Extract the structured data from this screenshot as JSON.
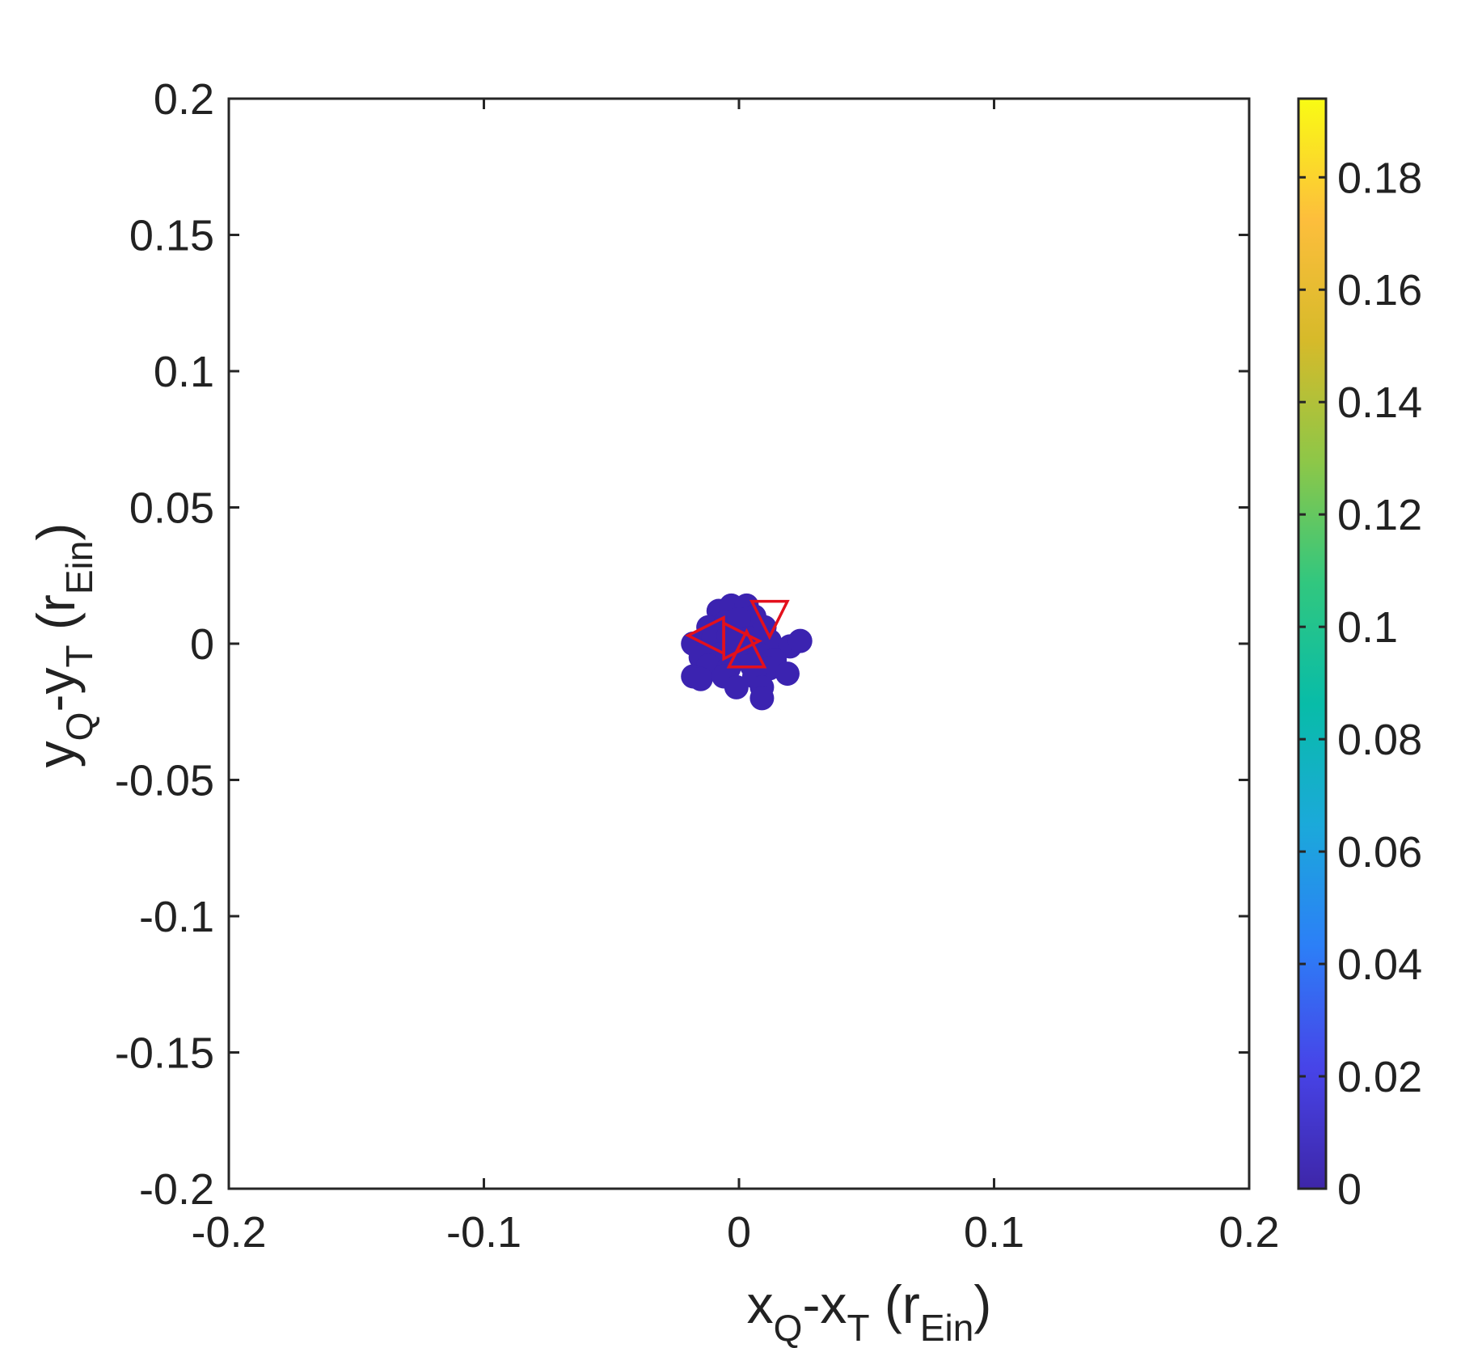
{
  "chart_data": {
    "type": "scatter",
    "xlabel": {
      "base": "x",
      "sub1": "Q",
      "mid": "-x",
      "sub2": "T",
      "open": " (r",
      "sub3": "Ein",
      "close": ")"
    },
    "ylabel": {
      "base": "y",
      "sub1": "Q",
      "mid": "-y",
      "sub2": "T",
      "open": " (r",
      "sub3": "Ein",
      "close": ")"
    },
    "xlim": [
      -0.2,
      0.2
    ],
    "ylim": [
      -0.2,
      0.2
    ],
    "xticks": [
      {
        "value": -0.2,
        "label": "-0.2"
      },
      {
        "value": -0.1,
        "label": "-0.1"
      },
      {
        "value": 0,
        "label": "0"
      },
      {
        "value": 0.1,
        "label": "0.1"
      },
      {
        "value": 0.2,
        "label": "0.2"
      }
    ],
    "yticks": [
      {
        "value": -0.2,
        "label": "-0.2"
      },
      {
        "value": -0.15,
        "label": "-0.15"
      },
      {
        "value": -0.1,
        "label": "-0.1"
      },
      {
        "value": -0.05,
        "label": "-0.05"
      },
      {
        "value": 0,
        "label": "0"
      },
      {
        "value": 0.05,
        "label": "0.05"
      },
      {
        "value": 0.1,
        "label": "0.1"
      },
      {
        "value": 0.15,
        "label": "0.15"
      },
      {
        "value": 0.2,
        "label": "0.2"
      }
    ],
    "colorbar": {
      "range": [
        0,
        0.194
      ],
      "colors": [
        "#3e26a8",
        "#4744e8",
        "#2c7ff7",
        "#1ba9da",
        "#08bca8",
        "#31c77f",
        "#8dc748",
        "#d6ba2a",
        "#fdbe3c",
        "#f9fb14"
      ],
      "ticks": [
        {
          "value": 0,
          "label": "0"
        },
        {
          "value": 0.02,
          "label": "0.02"
        },
        {
          "value": 0.04,
          "label": "0.04"
        },
        {
          "value": 0.06,
          "label": "0.06"
        },
        {
          "value": 0.08,
          "label": "0.08"
        },
        {
          "value": 0.1,
          "label": "0.1"
        },
        {
          "value": 0.12,
          "label": "0.12"
        },
        {
          "value": 0.14,
          "label": "0.14"
        },
        {
          "value": 0.16,
          "label": "0.16"
        },
        {
          "value": 0.18,
          "label": "0.18"
        }
      ]
    },
    "points_color": "#3b23b0",
    "marker_color": "#e3101c",
    "points": [
      {
        "x": -0.008,
        "y": 0.012,
        "c": 0.003
      },
      {
        "x": -0.003,
        "y": 0.014,
        "c": 0.003
      },
      {
        "x": 0.003,
        "y": 0.014,
        "c": 0.003
      },
      {
        "x": 0.006,
        "y": 0.01,
        "c": 0.003
      },
      {
        "x": -0.012,
        "y": 0.006,
        "c": 0.003
      },
      {
        "x": -0.005,
        "y": 0.008,
        "c": 0.003
      },
      {
        "x": 0.0,
        "y": 0.009,
        "c": 0.003
      },
      {
        "x": 0.01,
        "y": 0.006,
        "c": 0.003
      },
      {
        "x": -0.018,
        "y": 0.0,
        "c": 0.003
      },
      {
        "x": -0.01,
        "y": 0.002,
        "c": 0.003
      },
      {
        "x": -0.004,
        "y": 0.003,
        "c": 0.003
      },
      {
        "x": 0.004,
        "y": 0.002,
        "c": 0.003
      },
      {
        "x": 0.012,
        "y": 0.001,
        "c": 0.003
      },
      {
        "x": 0.02,
        "y": -0.001,
        "c": 0.003
      },
      {
        "x": 0.024,
        "y": 0.001,
        "c": 0.003
      },
      {
        "x": -0.015,
        "y": -0.005,
        "c": 0.003
      },
      {
        "x": -0.008,
        "y": -0.004,
        "c": 0.003
      },
      {
        "x": 0.0,
        "y": -0.003,
        "c": 0.003
      },
      {
        "x": 0.008,
        "y": -0.004,
        "c": 0.003
      },
      {
        "x": 0.014,
        "y": -0.006,
        "c": 0.003
      },
      {
        "x": -0.012,
        "y": -0.008,
        "c": 0.003
      },
      {
        "x": -0.004,
        "y": -0.009,
        "c": 0.003
      },
      {
        "x": 0.005,
        "y": -0.008,
        "c": 0.003
      },
      {
        "x": 0.012,
        "y": -0.009,
        "c": 0.003
      },
      {
        "x": -0.018,
        "y": -0.012,
        "c": 0.003
      },
      {
        "x": -0.015,
        "y": -0.013,
        "c": 0.003
      },
      {
        "x": -0.006,
        "y": -0.012,
        "c": 0.003
      },
      {
        "x": 0.006,
        "y": -0.012,
        "c": 0.003
      },
      {
        "x": 0.019,
        "y": -0.011,
        "c": 0.003
      },
      {
        "x": -0.001,
        "y": -0.016,
        "c": 0.003
      },
      {
        "x": 0.009,
        "y": -0.016,
        "c": 0.003
      },
      {
        "x": 0.009,
        "y": -0.02,
        "c": 0.003
      }
    ],
    "markers": [
      {
        "x": -0.013,
        "y": 0.003,
        "shape": "triangle-left"
      },
      {
        "x": 0.001,
        "y": 0.001,
        "shape": "triangle-right"
      },
      {
        "x": 0.003,
        "y": -0.002,
        "shape": "triangle-up"
      },
      {
        "x": 0.012,
        "y": 0.009,
        "shape": "triangle-down"
      }
    ]
  }
}
